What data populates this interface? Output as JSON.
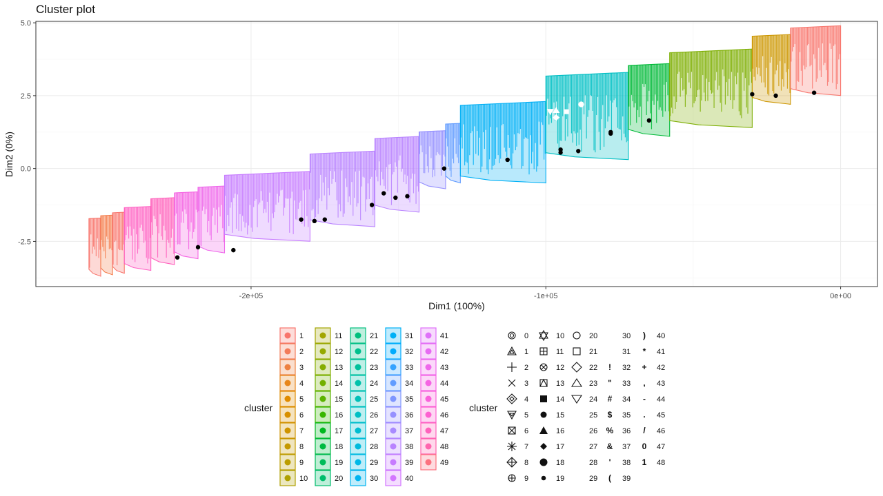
{
  "chart_data": {
    "type": "scatter",
    "title": "Cluster plot",
    "xlabel": "Dim1 (100%)",
    "ylabel": "Dim2 (0%)",
    "xlim": [
      -273000,
      12500
    ],
    "ylim": [
      -4.05,
      5.05
    ],
    "x_ticks": [
      {
        "value": -200000,
        "label": "-2e+05"
      },
      {
        "value": -100000,
        "label": "-1e+05"
      },
      {
        "value": 0,
        "label": "0e+00"
      }
    ],
    "y_ticks": [
      {
        "value": -2.5,
        "label": "-2.5"
      },
      {
        "value": 0,
        "label": "0.0"
      },
      {
        "value": 2.5,
        "label": "2.5"
      },
      {
        "value": 5,
        "label": "5.0"
      }
    ],
    "grid": true,
    "clusters": [
      {
        "id": 1,
        "x_min": -255000,
        "x_max": -251000,
        "bottom": -3.6,
        "top": -1.7,
        "color": "#F8766D"
      },
      {
        "id": 2,
        "x_min": -251000,
        "x_max": -247000,
        "bottom": -3.55,
        "top": -1.6,
        "color": "#F47D4B"
      },
      {
        "id": 3,
        "x_min": -247000,
        "x_max": -243000,
        "bottom": -3.5,
        "top": -1.5,
        "color": "#F8766D"
      },
      {
        "id": 4,
        "x_min": -243000,
        "x_max": -234000,
        "bottom": -3.4,
        "top": -1.3,
        "color": "#FF61C3"
      },
      {
        "id": 5,
        "x_min": -234000,
        "x_max": -226000,
        "bottom": -3.2,
        "top": -1.0,
        "color": "#FF62BC"
      },
      {
        "id": 6,
        "x_min": -226000,
        "x_max": -218000,
        "bottom": -3.0,
        "top": -0.8,
        "color": "#F564E3"
      },
      {
        "id": 7,
        "x_min": -218000,
        "x_max": -209000,
        "bottom": -2.8,
        "top": -0.6,
        "color": "#EF67EB"
      },
      {
        "id": 8,
        "x_min": -209000,
        "x_max": -180000,
        "bottom": -2.4,
        "top": -0.1,
        "color": "#C77CFF"
      },
      {
        "id": 9,
        "x_min": -180000,
        "x_max": -158000,
        "bottom": -1.9,
        "top": 0.6,
        "color": "#B983FF"
      },
      {
        "id": 10,
        "x_min": -158000,
        "x_max": -143000,
        "bottom": -1.4,
        "top": 1.1,
        "color": "#B983FF"
      },
      {
        "id": 11,
        "x_min": -143000,
        "x_max": -134000,
        "bottom": -0.6,
        "top": 1.3,
        "color": "#9590FF"
      },
      {
        "id": 12,
        "x_min": -134000,
        "x_max": -129000,
        "bottom": -0.4,
        "top": 1.55,
        "color": "#619CFF"
      },
      {
        "id": 13,
        "x_min": -129000,
        "x_max": -100000,
        "bottom": -0.4,
        "top": 2.3,
        "color": "#00B0F6"
      },
      {
        "id": 14,
        "x_min": -100000,
        "x_max": -72000,
        "bottom": 0.4,
        "top": 3.3,
        "color": "#00BFC4"
      },
      {
        "id": 15,
        "x_min": -72000,
        "x_max": -58000,
        "bottom": 1.2,
        "top": 3.6,
        "color": "#00BA38"
      },
      {
        "id": 16,
        "x_min": -58000,
        "x_max": -30000,
        "bottom": 1.5,
        "top": 4.1,
        "color": "#7CAE00"
      },
      {
        "id": 17,
        "x_min": -30000,
        "x_max": -17000,
        "bottom": 2.3,
        "top": 4.6,
        "color": "#CD9600"
      },
      {
        "id": 18,
        "x_min": -17000,
        "x_max": 0,
        "bottom": 2.6,
        "top": 4.9,
        "color": "#F8766D"
      }
    ],
    "centers": [
      {
        "x": -225000,
        "y": -3.05
      },
      {
        "x": -218000,
        "y": -2.7
      },
      {
        "x": -206000,
        "y": -2.8
      },
      {
        "x": -183000,
        "y": -1.75
      },
      {
        "x": -178500,
        "y": -1.8
      },
      {
        "x": -175000,
        "y": -1.75
      },
      {
        "x": -159000,
        "y": -1.25
      },
      {
        "x": -155000,
        "y": -0.85
      },
      {
        "x": -151000,
        "y": -1.0
      },
      {
        "x": -147000,
        "y": -0.95
      },
      {
        "x": -134500,
        "y": 0.0
      },
      {
        "x": -113000,
        "y": 0.3
      },
      {
        "x": -95000,
        "y": 0.55
      },
      {
        "x": -95000,
        "y": 0.65
      },
      {
        "x": -89000,
        "y": 0.6
      },
      {
        "x": -78000,
        "y": 1.2
      },
      {
        "x": -78000,
        "y": 1.25
      },
      {
        "x": -65000,
        "y": 1.65
      },
      {
        "x": -30000,
        "y": 2.55
      },
      {
        "x": -22000,
        "y": 2.5
      },
      {
        "x": -9000,
        "y": 2.6
      }
    ],
    "white_markers": [
      {
        "x": -98500,
        "y": 1.95,
        "shape": "tri-down"
      },
      {
        "x": -96500,
        "y": 2.0,
        "shape": "tri-up"
      },
      {
        "x": -96500,
        "y": 1.75,
        "shape": "diamond"
      },
      {
        "x": -93000,
        "y": 1.95,
        "shape": "square"
      },
      {
        "x": -88000,
        "y": 2.2,
        "shape": "circle"
      }
    ]
  },
  "legends": {
    "color_title": "cluster",
    "shape_title": "cluster",
    "color_items": [
      {
        "label": "1",
        "color": "#F8766D"
      },
      {
        "label": "2",
        "color": "#F37B59"
      },
      {
        "label": "3",
        "color": "#ED8141"
      },
      {
        "label": "4",
        "color": "#E7861B"
      },
      {
        "label": "5",
        "color": "#E08B00"
      },
      {
        "label": "6",
        "color": "#D89000"
      },
      {
        "label": "7",
        "color": "#CF9400"
      },
      {
        "label": "8",
        "color": "#C59900"
      },
      {
        "label": "9",
        "color": "#BB9D00"
      },
      {
        "label": "10",
        "color": "#AFA100"
      },
      {
        "label": "11",
        "color": "#A3A500"
      },
      {
        "label": "12",
        "color": "#95A900"
      },
      {
        "label": "13",
        "color": "#85AD00"
      },
      {
        "label": "14",
        "color": "#72B000"
      },
      {
        "label": "15",
        "color": "#5BB300"
      },
      {
        "label": "16",
        "color": "#39B600"
      },
      {
        "label": "17",
        "color": "#00B81F"
      },
      {
        "label": "18",
        "color": "#00BA42"
      },
      {
        "label": "19",
        "color": "#00BC59"
      },
      {
        "label": "20",
        "color": "#00BD6D"
      },
      {
        "label": "21",
        "color": "#00BF7D"
      },
      {
        "label": "22",
        "color": "#00C08D"
      },
      {
        "label": "23",
        "color": "#00C19C"
      },
      {
        "label": "24",
        "color": "#00C1AA"
      },
      {
        "label": "25",
        "color": "#00C0B8"
      },
      {
        "label": "26",
        "color": "#00BFC4"
      },
      {
        "label": "27",
        "color": "#00BDD1"
      },
      {
        "label": "28",
        "color": "#00BBDC"
      },
      {
        "label": "29",
        "color": "#00B8E7"
      },
      {
        "label": "30",
        "color": "#00B4F0"
      },
      {
        "label": "31",
        "color": "#00B0F6"
      },
      {
        "label": "32",
        "color": "#00ABFD"
      },
      {
        "label": "33",
        "color": "#35A2FF"
      },
      {
        "label": "34",
        "color": "#619CFF"
      },
      {
        "label": "35",
        "color": "#7F96FF"
      },
      {
        "label": "36",
        "color": "#9590FF"
      },
      {
        "label": "37",
        "color": "#A88AFF"
      },
      {
        "label": "38",
        "color": "#B983FF"
      },
      {
        "label": "39",
        "color": "#C77CFF"
      },
      {
        "label": "40",
        "color": "#D376FF"
      },
      {
        "label": "41",
        "color": "#DF70F9"
      },
      {
        "label": "42",
        "color": "#E76BF3"
      },
      {
        "label": "43",
        "color": "#EF67EB"
      },
      {
        "label": "44",
        "color": "#F564E3"
      },
      {
        "label": "45",
        "color": "#FA62DB"
      },
      {
        "label": "46",
        "color": "#FD61D1"
      },
      {
        "label": "47",
        "color": "#FF62BC"
      },
      {
        "label": "48",
        "color": "#FF65AE"
      },
      {
        "label": "49",
        "color": "#FC717F"
      }
    ],
    "shape_items": [
      {
        "label": "0",
        "glyph": "circle-ring"
      },
      {
        "label": "1",
        "glyph": "tri-up-in"
      },
      {
        "label": "2",
        "glyph": "plus"
      },
      {
        "label": "3",
        "glyph": "times"
      },
      {
        "label": "4",
        "glyph": "diamond-in"
      },
      {
        "label": "5",
        "glyph": "tri-down-in"
      },
      {
        "label": "6",
        "glyph": "square-x"
      },
      {
        "label": "7",
        "glyph": "star"
      },
      {
        "label": "8",
        "glyph": "diamond-plus"
      },
      {
        "label": "9",
        "glyph": "circle-plus"
      },
      {
        "label": "10",
        "glyph": "hexagram"
      },
      {
        "label": "11",
        "glyph": "square-plus"
      },
      {
        "label": "12",
        "glyph": "circle-x"
      },
      {
        "label": "13",
        "glyph": "square-tri"
      },
      {
        "label": "14",
        "glyph": "square-filled"
      },
      {
        "label": "15",
        "glyph": "circle-filled"
      },
      {
        "label": "16",
        "glyph": "tri-filled"
      },
      {
        "label": "17",
        "glyph": "diamond-filled"
      },
      {
        "label": "18",
        "glyph": "circle-large"
      },
      {
        "label": "19",
        "glyph": "circle-small"
      },
      {
        "label": "20",
        "glyph": "circle-open"
      },
      {
        "label": "21",
        "glyph": "square-open"
      },
      {
        "label": "22",
        "glyph": "diamond-open"
      },
      {
        "label": "23",
        "glyph": "tri-up-open"
      },
      {
        "label": "24",
        "glyph": "tri-down-open"
      },
      {
        "label": "25",
        "glyph": "none"
      },
      {
        "label": "26",
        "glyph": "none"
      },
      {
        "label": "27",
        "glyph": "none"
      },
      {
        "label": "28",
        "glyph": "none"
      },
      {
        "label": "29",
        "glyph": "none"
      },
      {
        "label": "30",
        "glyph": "none"
      },
      {
        "label": "31",
        "glyph": "none"
      },
      {
        "label": "32",
        "glyph": "text",
        "text": "!"
      },
      {
        "label": "33",
        "glyph": "text",
        "text": "\""
      },
      {
        "label": "34",
        "glyph": "text",
        "text": "#"
      },
      {
        "label": "35",
        "glyph": "text",
        "text": "$"
      },
      {
        "label": "36",
        "glyph": "text",
        "text": "%"
      },
      {
        "label": "37",
        "glyph": "text",
        "text": "&"
      },
      {
        "label": "38",
        "glyph": "text",
        "text": "'"
      },
      {
        "label": "39",
        "glyph": "text",
        "text": "("
      },
      {
        "label": "40",
        "glyph": "text",
        "text": ")"
      },
      {
        "label": "41",
        "glyph": "text",
        "text": "*"
      },
      {
        "label": "42",
        "glyph": "text",
        "text": "+"
      },
      {
        "label": "43",
        "glyph": "text",
        "text": ","
      },
      {
        "label": "44",
        "glyph": "text",
        "text": "-"
      },
      {
        "label": "45",
        "glyph": "text",
        "text": "."
      },
      {
        "label": "46",
        "glyph": "text",
        "text": "/"
      },
      {
        "label": "47",
        "glyph": "text",
        "text": "0"
      },
      {
        "label": "48",
        "glyph": "text",
        "text": "1"
      }
    ]
  }
}
